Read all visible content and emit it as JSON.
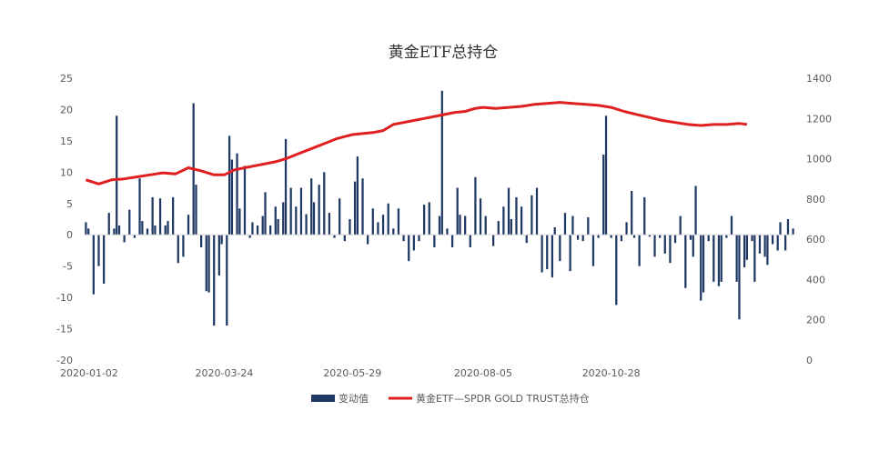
{
  "chart_data": {
    "type": "bar+line",
    "title": "黄金ETF总持仓",
    "colors": {
      "bars": "#1F3864",
      "line": "#E02020",
      "axis_text": "#595959"
    },
    "left_axis": {
      "min": -20,
      "max": 25,
      "ticks": [
        25,
        20,
        15,
        10,
        5,
        0,
        -5,
        -10,
        -15,
        -20
      ]
    },
    "right_axis": {
      "min": 0,
      "max": 1400,
      "ticks": [
        1400,
        1200,
        1000,
        800,
        600,
        400,
        200,
        0
      ]
    },
    "x_tick_labels": [
      "2020-01-02",
      "2020-03-24",
      "2020-05-29",
      "2020-08-05",
      "2020-10-28"
    ],
    "x_tick_indices": [
      0,
      54,
      104,
      155,
      205
    ],
    "legend": {
      "bars_label": "变动值",
      "line_label": "黄金ETF—SPDR GOLD TRUST总持仓"
    },
    "series": [
      {
        "name": "变动值",
        "kind": "bar",
        "axis": "left",
        "values": [
          2,
          1,
          0,
          -9.5,
          0,
          -5,
          0,
          -7.8,
          0,
          3.5,
          0,
          1,
          19,
          1.5,
          0,
          -1.2,
          0,
          4,
          0,
          -0.5,
          0,
          9,
          2.2,
          0,
          1,
          0,
          6,
          1.5,
          0,
          5.8,
          0,
          1.5,
          2.2,
          0,
          6,
          0,
          -4.5,
          0,
          -3.5,
          0,
          3.2,
          0,
          21,
          8,
          0,
          -2,
          0,
          -9,
          -9.2,
          0,
          -14.5,
          0,
          -6.5,
          -1.5,
          0,
          -14.5,
          15.8,
          12,
          0,
          13,
          4.2,
          0,
          11,
          0,
          -0.5,
          2,
          0,
          1.5,
          0,
          3,
          6.8,
          0,
          1.5,
          0,
          4.5,
          2.5,
          0,
          5.2,
          15.3,
          0,
          7.5,
          0,
          4.5,
          0,
          7.5,
          0,
          3.3,
          0,
          9,
          5.2,
          0,
          8,
          0,
          10,
          0,
          3.5,
          0,
          -0.5,
          0,
          5.8,
          0,
          -1,
          0,
          2.5,
          0,
          8.5,
          12.5,
          0,
          9,
          0,
          -1.5,
          0,
          4.2,
          0,
          2,
          0,
          3.2,
          0,
          5,
          0,
          1,
          0,
          4.2,
          0,
          -1,
          0,
          -4.2,
          0,
          -2.5,
          0,
          -1,
          0,
          4.8,
          0,
          5.2,
          0,
          -2,
          0,
          3,
          23,
          0,
          1,
          0,
          -2,
          0,
          7.5,
          3.2,
          0,
          3,
          0,
          -2,
          0,
          9.2,
          0,
          5.8,
          0,
          3,
          0,
          0,
          -1.8,
          0,
          2.2,
          0,
          4.5,
          0,
          7.5,
          2.5,
          0,
          6,
          0,
          4.5,
          0,
          -1.3,
          0,
          6.3,
          0,
          7.5,
          0,
          -6,
          0,
          -5.5,
          0,
          -6.8,
          1.2,
          0,
          -4.2,
          0,
          3.5,
          0,
          -5.8,
          3,
          0,
          -0.8,
          0,
          -1,
          0,
          2.8,
          0,
          -5,
          0,
          -0.5,
          0,
          12.8,
          19,
          0,
          -0.5,
          0,
          -11.2,
          0,
          -1,
          0,
          2,
          0,
          7,
          -0.5,
          0,
          -5,
          0,
          6,
          0,
          -0.3,
          0,
          -3.5,
          0,
          -0.5,
          0,
          -3,
          0,
          -4.5,
          0,
          -1.3,
          0,
          3,
          0,
          -8.5,
          0,
          -0.8,
          -3.5,
          7.8,
          0,
          -10.5,
          -9.2,
          0,
          -1,
          0,
          -7.5,
          0,
          -8.2,
          -7.5,
          0,
          -0.5,
          0,
          3,
          0,
          -7.5,
          -13.5,
          0,
          -5.2,
          -4,
          0,
          -1,
          -7.5,
          0,
          -3,
          0,
          -3.5,
          -4.8,
          0,
          -1.5,
          0,
          -2.5,
          2,
          0,
          -2.5,
          2.5,
          0,
          1
        ],
        "y_label_note": ""
      },
      {
        "name": "黄金ETF—SPDR GOLD TRUST总持仓",
        "kind": "line",
        "axis": "right",
        "x_index": [
          0,
          5,
          10,
          15,
          20,
          25,
          30,
          35,
          40,
          45,
          50,
          54,
          58,
          62,
          66,
          70,
          74,
          78,
          82,
          86,
          90,
          94,
          98,
          104,
          108,
          112,
          116,
          120,
          124,
          128,
          132,
          136,
          140,
          144,
          148,
          152,
          155,
          160,
          165,
          170,
          175,
          180,
          185,
          190,
          195,
          200,
          205,
          210,
          215,
          220,
          225,
          230,
          235,
          240,
          245,
          250,
          255,
          258
        ],
        "values": [
          895,
          875,
          895,
          900,
          910,
          920,
          930,
          925,
          955,
          940,
          920,
          920,
          945,
          955,
          965,
          975,
          985,
          1000,
          1020,
          1040,
          1060,
          1080,
          1100,
          1120,
          1125,
          1130,
          1140,
          1170,
          1180,
          1190,
          1200,
          1210,
          1220,
          1230,
          1235,
          1250,
          1255,
          1250,
          1255,
          1260,
          1270,
          1275,
          1280,
          1275,
          1270,
          1265,
          1255,
          1235,
          1220,
          1205,
          1190,
          1180,
          1170,
          1165,
          1170,
          1170,
          1175,
          1170
        ],
        "note": ""
      }
    ]
  }
}
